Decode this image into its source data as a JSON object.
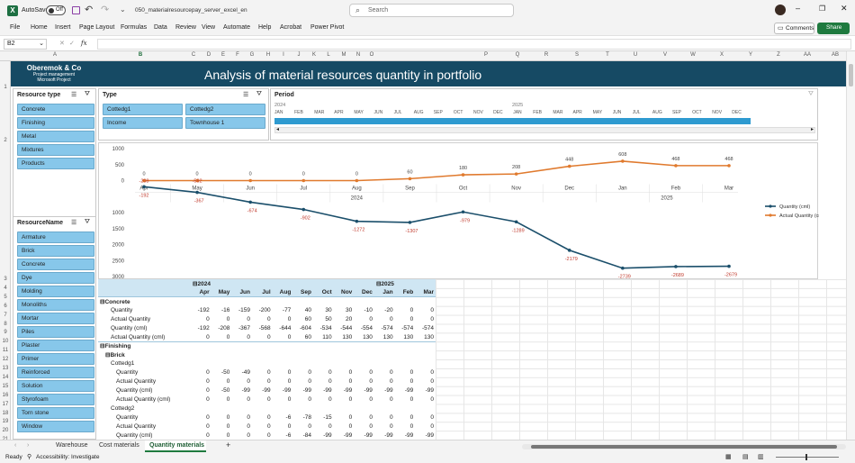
{
  "titlebar": {
    "file_menu": "File",
    "autosave": "AutoSave",
    "autosave_state": "Off",
    "filename": "050_materialresourcepay_server_excel_en",
    "search": "Search",
    "comments": "Comments",
    "share": "Share"
  },
  "ribbon": {
    "tabs": [
      "Home",
      "Insert",
      "Page Layout",
      "Formulas",
      "Data",
      "Review",
      "View",
      "Automate",
      "Help",
      "Acrobat",
      "Power Pivot"
    ]
  },
  "formula": {
    "name_box": "B2",
    "fx": "fx",
    "value": ""
  },
  "columns": [
    "A",
    "B",
    "C",
    "D",
    "E",
    "F",
    "G",
    "H",
    "I",
    "J",
    "K",
    "L",
    "M",
    "N",
    "O",
    "P",
    "Q",
    "R",
    "S",
    "T",
    "U",
    "V",
    "W",
    "X",
    "Y",
    "Z",
    "AA",
    "AB"
  ],
  "rows": [
    "1",
    "2",
    "3",
    "4",
    "5",
    "6",
    "7",
    "8",
    "9",
    "10",
    "11",
    "12",
    "13",
    "14",
    "15",
    "16",
    "17",
    "18",
    "19",
    "20",
    "21"
  ],
  "banner": {
    "company": "Oberemok & Co",
    "line2": "Project management",
    "line3": "Microsoft Project",
    "title": "Analysis of material resources quantity in portfolio",
    "color": "#164a64"
  },
  "slicer_resource_type": {
    "title": "Resource type",
    "items": [
      "Concrete",
      "Finishing",
      "Metal",
      "Mixtures",
      "Products"
    ]
  },
  "slicer_type": {
    "title": "Type",
    "items": [
      "Cottedg1",
      "Cottedg2",
      "Income",
      "Townhouse 1"
    ]
  },
  "slicer_resource_name": {
    "title": "ResourceName",
    "items": [
      "Armature",
      "Brick",
      "Concrete",
      "Dye",
      "Molding",
      "Monoliths",
      "Mortar",
      "Piles",
      "Plaster",
      "Primer",
      "Reinforced",
      "Solution",
      "Styrofoam",
      "Torn stone",
      "Window"
    ]
  },
  "timeline": {
    "title": "Period",
    "year": "2025",
    "year0": "2024",
    "months": [
      "JAN",
      "FEB",
      "MAR",
      "APR",
      "MAY",
      "JUN",
      "JUL",
      "AUG",
      "SEP",
      "OCT",
      "NOV",
      "DEC",
      "JAN",
      "FEB",
      "MAR",
      "APR",
      "MAY",
      "JUN",
      "JUL",
      "AUG",
      "SEP",
      "OCT",
      "NOV",
      "DEC"
    ]
  },
  "chart_data": {
    "type": "line",
    "categories": [
      "Apr",
      "May",
      "Jun",
      "Jul",
      "Aug",
      "Sep",
      "Oct",
      "Nov",
      "Dec",
      "Jan",
      "Feb",
      "Mar"
    ],
    "year_labels": [
      "2024",
      "2025"
    ],
    "series": [
      {
        "name": "Quantity (cml)",
        "color": "#1b4f6b",
        "values": [
          -192,
          -367,
          -674,
          -902,
          -1272,
          -1307,
          -979,
          -1289,
          -2179,
          -2739,
          -2689,
          -2679
        ],
        "labels": [
          "-192",
          "-367",
          "-674",
          "-902",
          "-1272",
          "-1307",
          "-979",
          "-1289",
          "-2179",
          "-2739",
          "-2689",
          "-2679"
        ]
      },
      {
        "name": "Actual Quantity (cml)",
        "color": "#e07a2e",
        "values": [
          0,
          0,
          0,
          0,
          0,
          60,
          180,
          208,
          448,
          608,
          468,
          468
        ],
        "labels": [
          "0",
          "0",
          "0",
          "0",
          "0",
          "60",
          "180",
          "208",
          "448",
          "608",
          "468",
          "468"
        ]
      }
    ],
    "extra_labels": [
      "-208",
      "-592"
    ],
    "y_ticks": [
      1000,
      500,
      0,
      -1000,
      -1500,
      -2000,
      -2500,
      -3000
    ],
    "y_tick_labels": [
      "1000",
      "500",
      "0",
      "1000",
      "1500",
      "2000",
      "2500",
      "3000"
    ],
    "ylim": [
      -3000,
      1000
    ]
  },
  "pivot": {
    "year1": "2024",
    "year2": "2025",
    "months": [
      "Apr",
      "May",
      "Jun",
      "Jul",
      "Aug",
      "Sep",
      "Oct",
      "Nov",
      "Dec",
      "Jan",
      "Feb",
      "Mar"
    ],
    "rows": [
      {
        "label": "Concrete",
        "indent": 0,
        "bold": true,
        "exp": true,
        "vals": []
      },
      {
        "label": "Quantity",
        "indent": 2,
        "vals": [
          "-192",
          "-16",
          "-159",
          "-200",
          "-77",
          "40",
          "30",
          "30",
          "-10",
          "-20",
          "0",
          "0"
        ]
      },
      {
        "label": "Actual Quantity",
        "indent": 2,
        "vals": [
          "0",
          "0",
          "0",
          "0",
          "0",
          "60",
          "50",
          "20",
          "0",
          "0",
          "0",
          "0"
        ]
      },
      {
        "label": "Quantity (cml)",
        "indent": 2,
        "vals": [
          "-192",
          "-208",
          "-367",
          "-568",
          "-644",
          "-604",
          "-534",
          "-544",
          "-554",
          "-574",
          "-574",
          "-574"
        ]
      },
      {
        "label": "Actual Quantity (cml)",
        "indent": 2,
        "vals": [
          "0",
          "0",
          "0",
          "0",
          "0",
          "60",
          "110",
          "130",
          "130",
          "130",
          "130",
          "130"
        ]
      },
      {
        "label": "Finishing",
        "indent": 0,
        "bold": true,
        "exp": true,
        "vals": []
      },
      {
        "label": "Brick",
        "indent": 1,
        "bold": true,
        "exp": true,
        "vals": []
      },
      {
        "label": "Cottedg1",
        "indent": 2,
        "vals": []
      },
      {
        "label": "Quantity",
        "indent": 3,
        "vals": [
          "0",
          "-50",
          "-49",
          "0",
          "0",
          "0",
          "0",
          "0",
          "0",
          "0",
          "0",
          "0"
        ]
      },
      {
        "label": "Actual Quantity",
        "indent": 3,
        "vals": [
          "0",
          "0",
          "0",
          "0",
          "0",
          "0",
          "0",
          "0",
          "0",
          "0",
          "0",
          "0"
        ]
      },
      {
        "label": "Quantity (cml)",
        "indent": 3,
        "vals": [
          "0",
          "-50",
          "-99",
          "-99",
          "-99",
          "-99",
          "-99",
          "-99",
          "-99",
          "-99",
          "-99",
          "-99"
        ]
      },
      {
        "label": "Actual Quantity (cml)",
        "indent": 3,
        "vals": [
          "0",
          "0",
          "0",
          "0",
          "0",
          "0",
          "0",
          "0",
          "0",
          "0",
          "0",
          "0"
        ]
      },
      {
        "label": "Cottedg2",
        "indent": 2,
        "vals": []
      },
      {
        "label": "Quantity",
        "indent": 3,
        "vals": [
          "0",
          "0",
          "0",
          "0",
          "-6",
          "-78",
          "-15",
          "0",
          "0",
          "0",
          "0",
          "0"
        ]
      },
      {
        "label": "Actual Quantity",
        "indent": 3,
        "vals": [
          "0",
          "0",
          "0",
          "0",
          "0",
          "0",
          "0",
          "0",
          "0",
          "0",
          "0",
          "0"
        ]
      },
      {
        "label": "Quantity (cml)",
        "indent": 3,
        "vals": [
          "0",
          "0",
          "0",
          "0",
          "-6",
          "-84",
          "-99",
          "-99",
          "-99",
          "-99",
          "-99",
          "-99"
        ]
      }
    ]
  },
  "sheets": [
    "Warehouse",
    "Cost materials",
    "Quantity materials"
  ],
  "active_sheet": "Quantity materials",
  "status": {
    "ready": "Ready",
    "accessibility": "Accessibility: Investigate"
  }
}
